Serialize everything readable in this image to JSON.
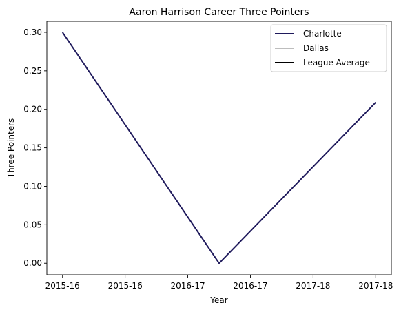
{
  "chart_data": {
    "type": "line",
    "title": "Aaron Harrison Career Three Pointers",
    "xlabel": "Year",
    "ylabel": "Three Pointers",
    "x_ticks": [
      "2015-16",
      "2015-16",
      "2016-17",
      "2016-17",
      "2017-18",
      "2017-18"
    ],
    "x_range": [
      -0.1,
      2.1
    ],
    "ylim": [
      -0.015,
      0.3143
    ],
    "y_ticks": [
      0.0,
      0.05,
      0.1,
      0.15,
      0.2,
      0.25,
      0.3
    ],
    "y_tick_labels": [
      "0.00",
      "0.05",
      "0.10",
      "0.15",
      "0.20",
      "0.25",
      "0.30"
    ],
    "grid": false,
    "legend_position": "top-right",
    "series": [
      {
        "name": "Charlotte",
        "color": "#1f1a5c",
        "x": [
          0,
          1,
          2
        ],
        "values": [
          0.3,
          0.0,
          0.209
        ]
      },
      {
        "name": "Dallas",
        "color": "#bdbdbd",
        "x": [],
        "values": []
      },
      {
        "name": "League Average",
        "color": "#000000",
        "x": [],
        "values": []
      }
    ]
  }
}
